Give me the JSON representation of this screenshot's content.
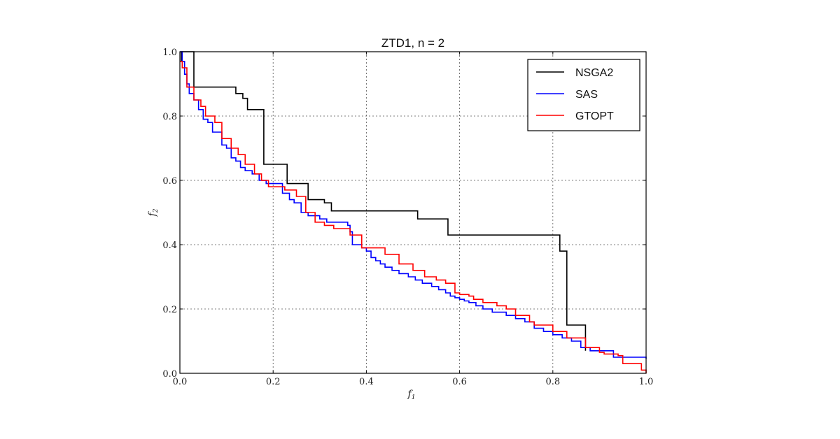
{
  "chart_data": {
    "type": "line",
    "title": "ZTD1, n = 2",
    "xlabel": "f",
    "xlabel_sub": "1",
    "ylabel": "f",
    "ylabel_sub": "2",
    "xlim": [
      0.0,
      1.0
    ],
    "ylim": [
      0.0,
      1.0
    ],
    "xticks": [
      "0.0",
      "0.2",
      "0.4",
      "0.6",
      "0.8",
      "1.0"
    ],
    "yticks": [
      "0.0",
      "0.2",
      "0.4",
      "0.6",
      "0.8",
      "1.0"
    ],
    "grid": true,
    "legend_position": "top-right",
    "series": [
      {
        "name": "NSGA2",
        "color": "#000000",
        "x": [
          0.0,
          0.003,
          0.03,
          0.12,
          0.135,
          0.145,
          0.18,
          0.23,
          0.275,
          0.31,
          0.325,
          0.51,
          0.575,
          0.815,
          0.83,
          0.87,
          0.87
        ],
        "y": [
          0.97,
          1.0,
          0.89,
          0.87,
          0.855,
          0.82,
          0.65,
          0.59,
          0.54,
          0.53,
          0.505,
          0.48,
          0.43,
          0.38,
          0.15,
          0.14,
          0.07
        ]
      },
      {
        "name": "SAS",
        "color": "#0000ff",
        "x": [
          0.0,
          0.005,
          0.01,
          0.015,
          0.02,
          0.03,
          0.04,
          0.05,
          0.06,
          0.07,
          0.09,
          0.1,
          0.11,
          0.12,
          0.13,
          0.14,
          0.155,
          0.17,
          0.185,
          0.205,
          0.22,
          0.235,
          0.245,
          0.26,
          0.275,
          0.3,
          0.315,
          0.34,
          0.36,
          0.365,
          0.37,
          0.39,
          0.4,
          0.41,
          0.42,
          0.43,
          0.44,
          0.455,
          0.47,
          0.49,
          0.505,
          0.52,
          0.54,
          0.555,
          0.57,
          0.58,
          0.59,
          0.6,
          0.61,
          0.62,
          0.635,
          0.65,
          0.67,
          0.7,
          0.72,
          0.74,
          0.76,
          0.78,
          0.8,
          0.82,
          0.84,
          0.86,
          0.88,
          0.93,
          1.0
        ],
        "y": [
          1.0,
          0.97,
          0.93,
          0.9,
          0.87,
          0.85,
          0.82,
          0.79,
          0.78,
          0.75,
          0.71,
          0.7,
          0.67,
          0.66,
          0.64,
          0.63,
          0.62,
          0.6,
          0.59,
          0.59,
          0.56,
          0.54,
          0.53,
          0.5,
          0.49,
          0.48,
          0.47,
          0.47,
          0.46,
          0.44,
          0.4,
          0.39,
          0.38,
          0.36,
          0.35,
          0.34,
          0.33,
          0.32,
          0.31,
          0.3,
          0.29,
          0.28,
          0.27,
          0.26,
          0.25,
          0.24,
          0.235,
          0.23,
          0.225,
          0.22,
          0.21,
          0.2,
          0.19,
          0.18,
          0.17,
          0.16,
          0.14,
          0.13,
          0.12,
          0.11,
          0.1,
          0.08,
          0.07,
          0.05,
          0.045
        ]
      },
      {
        "name": "GTOPT",
        "color": "#ff0000",
        "x": [
          0.0,
          0.005,
          0.015,
          0.03,
          0.045,
          0.055,
          0.075,
          0.09,
          0.11,
          0.125,
          0.14,
          0.16,
          0.175,
          0.19,
          0.225,
          0.25,
          0.27,
          0.29,
          0.31,
          0.33,
          0.365,
          0.39,
          0.44,
          0.47,
          0.5,
          0.525,
          0.55,
          0.57,
          0.59,
          0.6,
          0.62,
          0.63,
          0.65,
          0.68,
          0.7,
          0.72,
          0.75,
          0.76,
          0.8,
          0.83,
          0.87,
          0.9,
          0.91,
          0.94,
          0.95,
          0.99,
          1.0
        ],
        "y": [
          0.97,
          0.95,
          0.89,
          0.85,
          0.83,
          0.8,
          0.78,
          0.73,
          0.7,
          0.68,
          0.65,
          0.62,
          0.6,
          0.58,
          0.57,
          0.55,
          0.5,
          0.47,
          0.46,
          0.45,
          0.43,
          0.39,
          0.37,
          0.34,
          0.32,
          0.3,
          0.29,
          0.28,
          0.25,
          0.245,
          0.24,
          0.23,
          0.22,
          0.21,
          0.2,
          0.18,
          0.16,
          0.15,
          0.13,
          0.11,
          0.08,
          0.065,
          0.06,
          0.055,
          0.03,
          0.01,
          0.0
        ]
      }
    ]
  }
}
